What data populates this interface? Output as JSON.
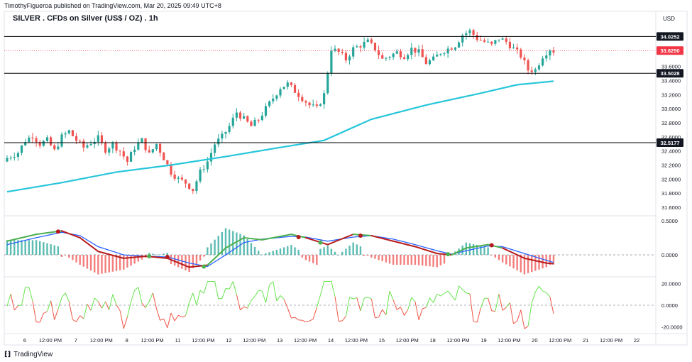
{
  "header": {
    "published": "TimothyFigueroa published on TradingView.com, Mar 20, 2025 09:49 UTC+8",
    "title": "SILVER . CFDs on Silver (US$ / OZ) . 1h",
    "currency": "USD"
  },
  "footer": {
    "brand": "TradingView"
  },
  "colors": {
    "up": "#26a69a",
    "down": "#ef5350",
    "ma": "#26c6da",
    "macd_fast": "#4caf50",
    "macd_slow": "#2962ff",
    "macd_red": "#b71c1c",
    "osc_up": "#66e34d",
    "osc_down": "#f05545",
    "hline": "#000000",
    "last_price": "#f23645"
  },
  "chart_data": [
    {
      "type": "candlestick",
      "ylim": [
        31.5,
        34.2
      ],
      "y_ticks": [
        "31.6000",
        "31.8000",
        "32.0000",
        "32.2000",
        "32.4000",
        "32.6000",
        "32.8000",
        "33.0000",
        "33.2000",
        "33.4000",
        "33.6000"
      ],
      "x_ticks": [
        "6",
        "12:00 PM",
        "7",
        "12:00 PM",
        "8",
        "12:00 PM",
        "11",
        "12:00 PM",
        "12",
        "12:00 PM",
        "13",
        "12:00 PM",
        "14",
        "12:00 PM",
        "15",
        "12:00 PM",
        "18",
        "12:00 PM",
        "19",
        "12:00 PM",
        "20",
        "12:00 PM",
        "21",
        "12:00 PM",
        "22"
      ],
      "horizontal_levels": [
        {
          "label": "34.0252",
          "value": 34.0252
        },
        {
          "label": "33.5028",
          "value": 33.5028
        },
        {
          "label": "32.5177",
          "value": 32.5177
        }
      ],
      "last_price": {
        "label": "33.8250",
        "value": 33.825
      },
      "close_path": [
        [
          0,
          32.3
        ],
        [
          3,
          32.38
        ],
        [
          5,
          32.55
        ],
        [
          7,
          32.62
        ],
        [
          9,
          32.5
        ],
        [
          11,
          32.55
        ],
        [
          13,
          32.4
        ],
        [
          15,
          32.6
        ],
        [
          17,
          32.68
        ],
        [
          19,
          32.55
        ],
        [
          21,
          32.45
        ],
        [
          23,
          32.52
        ],
        [
          25,
          32.58
        ],
        [
          27,
          32.42
        ],
        [
          29,
          32.5
        ],
        [
          31,
          32.4
        ],
        [
          33,
          32.25
        ],
        [
          35,
          32.45
        ],
        [
          37,
          32.55
        ],
        [
          39,
          32.35
        ],
        [
          41,
          32.5
        ],
        [
          43,
          32.3
        ],
        [
          45,
          32.1
        ],
        [
          47,
          32.0
        ],
        [
          49,
          31.95
        ],
        [
          51,
          31.85
        ],
        [
          53,
          32.1
        ],
        [
          55,
          32.25
        ],
        [
          57,
          32.5
        ],
        [
          59,
          32.6
        ],
        [
          61,
          32.75
        ],
        [
          63,
          32.95
        ],
        [
          65,
          32.85
        ],
        [
          67,
          32.75
        ],
        [
          69,
          32.85
        ],
        [
          71,
          33.0
        ],
        [
          73,
          33.15
        ],
        [
          75,
          33.3
        ],
        [
          77,
          33.35
        ],
        [
          79,
          33.25
        ],
        [
          81,
          33.15
        ],
        [
          83,
          33.05
        ],
        [
          85,
          33.0
        ],
        [
          87,
          33.2
        ],
        [
          89,
          33.85
        ],
        [
          91,
          33.8
        ],
        [
          93,
          33.7
        ],
        [
          95,
          33.85
        ],
        [
          97,
          33.9
        ],
        [
          99,
          33.95
        ],
        [
          101,
          33.85
        ],
        [
          103,
          33.7
        ],
        [
          105,
          33.75
        ],
        [
          107,
          33.8
        ],
        [
          109,
          33.75
        ],
        [
          111,
          33.85
        ],
        [
          113,
          33.8
        ],
        [
          115,
          33.65
        ],
        [
          117,
          33.7
        ],
        [
          119,
          33.8
        ],
        [
          121,
          33.85
        ],
        [
          123,
          33.9
        ],
        [
          125,
          34.05
        ],
        [
          127,
          34.1
        ],
        [
          129,
          34.0
        ],
        [
          131,
          33.95
        ],
        [
          133,
          33.9
        ],
        [
          135,
          34.0
        ],
        [
          137,
          33.95
        ],
        [
          139,
          33.85
        ],
        [
          141,
          33.75
        ],
        [
          143,
          33.55
        ],
        [
          145,
          33.55
        ],
        [
          147,
          33.75
        ],
        [
          149,
          33.85
        ],
        [
          150,
          33.82
        ]
      ],
      "ma_path": [
        [
          0,
          31.82
        ],
        [
          15,
          31.95
        ],
        [
          30,
          32.1
        ],
        [
          45,
          32.2
        ],
        [
          60,
          32.32
        ],
        [
          75,
          32.45
        ],
        [
          87,
          32.55
        ],
        [
          100,
          32.85
        ],
        [
          115,
          33.05
        ],
        [
          130,
          33.22
        ],
        [
          140,
          33.34
        ],
        [
          150,
          33.39
        ]
      ]
    },
    {
      "type": "macd",
      "ylim": [
        -0.3,
        0.55
      ],
      "y_ticks": [
        "0.5000",
        "0.0000"
      ],
      "fast_path": [
        [
          0,
          0.2
        ],
        [
          8,
          0.3
        ],
        [
          15,
          0.35
        ],
        [
          20,
          0.25
        ],
        [
          25,
          0.05
        ],
        [
          32,
          -0.05
        ],
        [
          38,
          -0.02
        ],
        [
          44,
          -0.05
        ],
        [
          50,
          -0.18
        ],
        [
          55,
          -0.15
        ],
        [
          60,
          0.1
        ],
        [
          65,
          0.25
        ],
        [
          70,
          0.22
        ],
        [
          78,
          0.3
        ],
        [
          82,
          0.25
        ],
        [
          88,
          0.15
        ],
        [
          95,
          0.3
        ],
        [
          100,
          0.28
        ],
        [
          106,
          0.2
        ],
        [
          112,
          0.12
        ],
        [
          118,
          0.02
        ],
        [
          122,
          0.0
        ],
        [
          126,
          0.1
        ],
        [
          132,
          0.15
        ],
        [
          136,
          0.1
        ],
        [
          142,
          -0.05
        ],
        [
          148,
          -0.12
        ],
        [
          150,
          -0.13
        ]
      ],
      "slow_path": [
        [
          0,
          0.15
        ],
        [
          8,
          0.25
        ],
        [
          15,
          0.33
        ],
        [
          20,
          0.28
        ],
        [
          25,
          0.12
        ],
        [
          32,
          0.0
        ],
        [
          38,
          -0.02
        ],
        [
          44,
          -0.03
        ],
        [
          50,
          -0.12
        ],
        [
          55,
          -0.17
        ],
        [
          60,
          0.0
        ],
        [
          65,
          0.18
        ],
        [
          70,
          0.23
        ],
        [
          78,
          0.27
        ],
        [
          82,
          0.26
        ],
        [
          88,
          0.2
        ],
        [
          95,
          0.26
        ],
        [
          100,
          0.28
        ],
        [
          106,
          0.23
        ],
        [
          112,
          0.15
        ],
        [
          118,
          0.06
        ],
        [
          122,
          0.01
        ],
        [
          126,
          0.06
        ],
        [
          132,
          0.13
        ],
        [
          136,
          0.12
        ],
        [
          142,
          0.02
        ],
        [
          148,
          -0.08
        ],
        [
          150,
          -0.11
        ]
      ],
      "cross_points": [
        [
          14,
          0.34,
          "down"
        ],
        [
          39,
          -0.02,
          "up"
        ],
        [
          44,
          -0.03,
          "down"
        ],
        [
          54,
          -0.17,
          "up"
        ],
        [
          80,
          0.26,
          "down"
        ],
        [
          86,
          0.18,
          "up"
        ],
        [
          97,
          0.28,
          "down"
        ],
        [
          121,
          0.01,
          "up"
        ],
        [
          133,
          0.14,
          "down"
        ]
      ],
      "hist_up_ranges": [
        [
          0,
          14
        ],
        [
          39,
          44
        ],
        [
          55,
          80
        ],
        [
          86,
          97
        ],
        [
          121,
          132
        ]
      ]
    },
    {
      "type": "oscillator",
      "ylim": [
        -25,
        25
      ],
      "y_ticks": [
        "20.0000",
        "0.0000",
        "-20.0000"
      ]
    }
  ]
}
